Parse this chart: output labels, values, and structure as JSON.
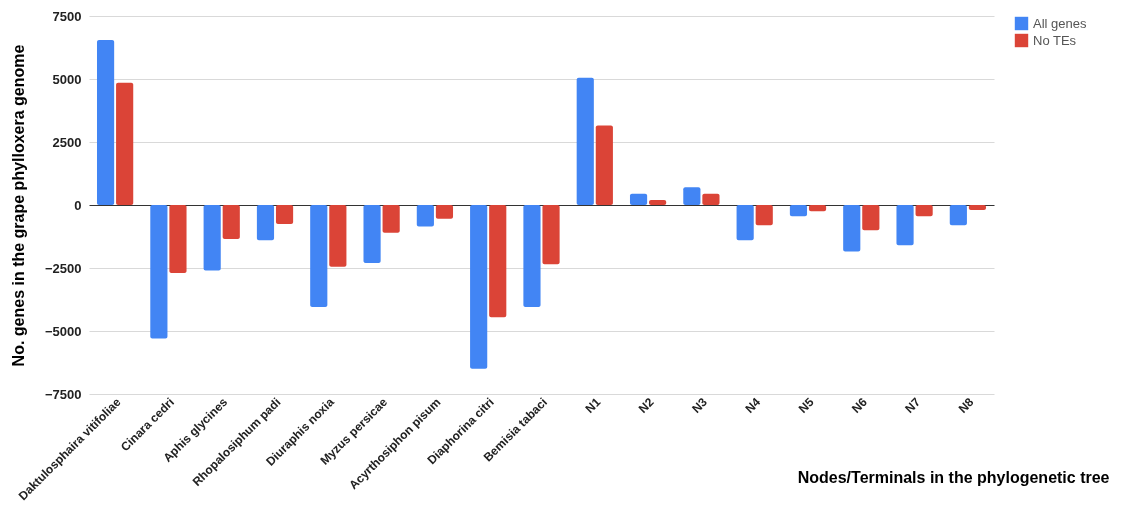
{
  "chart_data": {
    "type": "bar",
    "xlabel": "Nodes/Terminals in the phylogenetic tree",
    "ylabel": "No. genes in the grape phylloxera genome",
    "categories": [
      "Daktulosphaira vitifoliae",
      "Cinara cedri",
      "Aphis glycines",
      "Rhopalosiphum padi",
      "Diuraphis noxia",
      "Myzus persicae",
      "Acyrthosiphon pisum",
      "Diaphorina citri",
      "Bemisia tabaci",
      "N1",
      "N2",
      "N3",
      "N4",
      "N5",
      "N6",
      "N7",
      "N8"
    ],
    "series": [
      {
        "name": "All genes",
        "color": "#4285f4",
        "values": [
          6550,
          -5300,
          -2600,
          -1400,
          -4050,
          -2300,
          -850,
          -6500,
          -4050,
          5050,
          450,
          700,
          -1400,
          -450,
          -1850,
          -1600,
          -800
        ]
      },
      {
        "name": "No TEs",
        "color": "#db4437",
        "values": [
          4850,
          -2700,
          -1350,
          -750,
          -2450,
          -1100,
          -550,
          -4450,
          -2350,
          3150,
          200,
          450,
          -800,
          -250,
          -1000,
          -450,
          -200
        ]
      }
    ],
    "ylim": [
      -7500,
      7500
    ],
    "yticks": [
      -7500,
      -5000,
      -2500,
      0,
      2500,
      5000,
      7500
    ],
    "grid": "y",
    "legend": "top right"
  }
}
